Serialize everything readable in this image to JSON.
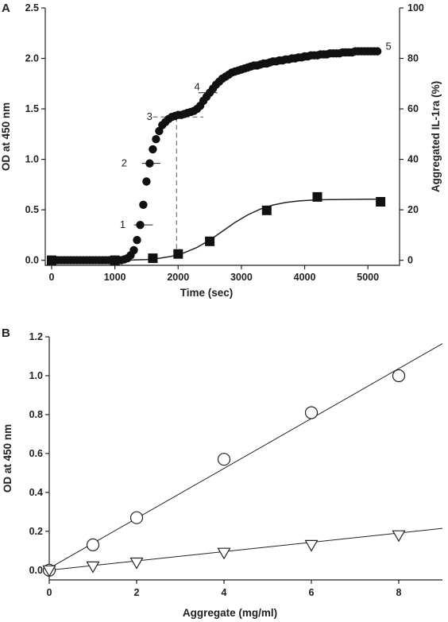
{
  "chart_data": [
    {
      "panel": "A",
      "type": "scatter",
      "xlabel": "Time (sec)",
      "ylabel": "OD at 450 nm",
      "ylabel_right": "Aggregated IL-1ra (%)",
      "xlim": [
        -100,
        5500
      ],
      "ylim": [
        -0.05,
        2.5
      ],
      "ylim_right": [
        -2,
        100
      ],
      "x_ticks": [
        0,
        1000,
        2000,
        3000,
        4000,
        5000
      ],
      "y_ticks": [
        0.0,
        0.5,
        1.0,
        1.5,
        2.0,
        2.5
      ],
      "y_tick_labels": [
        "0.0",
        "0.5",
        "1.0",
        "1.5",
        "2.0",
        "2.5"
      ],
      "y_ticks_right": [
        0,
        20,
        40,
        60,
        80,
        100
      ],
      "series": [
        {
          "marker": "circle-filled",
          "axis": "left",
          "points": [
            [
              0,
              0
            ],
            [
              50,
              0
            ],
            [
              100,
              0
            ],
            [
              150,
              0
            ],
            [
              200,
              0
            ],
            [
              250,
              0
            ],
            [
              300,
              0
            ],
            [
              350,
              0
            ],
            [
              400,
              0
            ],
            [
              450,
              0
            ],
            [
              500,
              0
            ],
            [
              550,
              0
            ],
            [
              600,
              0
            ],
            [
              650,
              0
            ],
            [
              700,
              0
            ],
            [
              750,
              0
            ],
            [
              800,
              0
            ],
            [
              850,
              0
            ],
            [
              900,
              0
            ],
            [
              950,
              0
            ],
            [
              1000,
              0
            ],
            [
              1050,
              0
            ],
            [
              1100,
              0
            ],
            [
              1150,
              0.01
            ],
            [
              1200,
              0.02
            ],
            [
              1250,
              0.05
            ],
            [
              1300,
              0.1
            ],
            [
              1350,
              0.2
            ],
            [
              1400,
              0.35
            ],
            [
              1450,
              0.55
            ],
            [
              1500,
              0.78
            ],
            [
              1550,
              0.96
            ],
            [
              1600,
              1.1
            ],
            [
              1650,
              1.2
            ],
            [
              1700,
              1.28
            ],
            [
              1750,
              1.34
            ],
            [
              1800,
              1.37
            ],
            [
              1850,
              1.4
            ],
            [
              1900,
              1.42
            ],
            [
              1950,
              1.43
            ],
            [
              2000,
              1.44
            ],
            [
              2050,
              1.44
            ],
            [
              2100,
              1.45
            ],
            [
              2150,
              1.46
            ],
            [
              2200,
              1.47
            ],
            [
              2250,
              1.48
            ],
            [
              2300,
              1.5
            ],
            [
              2350,
              1.53
            ],
            [
              2400,
              1.58
            ],
            [
              2450,
              1.62
            ],
            [
              2500,
              1.66
            ],
            [
              2550,
              1.7
            ],
            [
              2600,
              1.74
            ],
            [
              2650,
              1.77
            ],
            [
              2700,
              1.8
            ],
            [
              2750,
              1.82
            ],
            [
              2800,
              1.84
            ],
            [
              2850,
              1.86
            ],
            [
              2900,
              1.87
            ],
            [
              2950,
              1.88
            ],
            [
              3000,
              1.89
            ],
            [
              3050,
              1.9
            ],
            [
              3100,
              1.91
            ],
            [
              3150,
              1.92
            ],
            [
              3200,
              1.93
            ],
            [
              3250,
              1.93
            ],
            [
              3300,
              1.94
            ],
            [
              3350,
              1.95
            ],
            [
              3400,
              1.95
            ],
            [
              3450,
              1.96
            ],
            [
              3500,
              1.97
            ],
            [
              3550,
              1.97
            ],
            [
              3600,
              1.98
            ],
            [
              3650,
              1.98
            ],
            [
              3700,
              1.99
            ],
            [
              3750,
              1.99
            ],
            [
              3800,
              2.0
            ],
            [
              3850,
              2.0
            ],
            [
              3900,
              2.01
            ],
            [
              3950,
              2.01
            ],
            [
              4000,
              2.02
            ],
            [
              4050,
              2.02
            ],
            [
              4100,
              2.03
            ],
            [
              4150,
              2.03
            ],
            [
              4200,
              2.03
            ],
            [
              4250,
              2.04
            ],
            [
              4300,
              2.04
            ],
            [
              4350,
              2.04
            ],
            [
              4400,
              2.05
            ],
            [
              4450,
              2.05
            ],
            [
              4500,
              2.05
            ],
            [
              4550,
              2.05
            ],
            [
              4600,
              2.06
            ],
            [
              4650,
              2.06
            ],
            [
              4700,
              2.06
            ],
            [
              4750,
              2.06
            ],
            [
              4800,
              2.07
            ],
            [
              4850,
              2.07
            ],
            [
              4900,
              2.07
            ],
            [
              4950,
              2.07
            ],
            [
              5000,
              2.07
            ],
            [
              5050,
              2.07
            ],
            [
              5100,
              2.07
            ],
            [
              5150,
              2.07
            ]
          ]
        },
        {
          "marker": "square-filled",
          "axis": "right",
          "fit": "sigmoid",
          "points": [
            [
              0,
              0
            ],
            [
              1000,
              0
            ],
            [
              1600,
              0.8
            ],
            [
              2000,
              2.5
            ],
            [
              2500,
              7.5
            ],
            [
              3400,
              19.8
            ],
            [
              4200,
              25.1
            ],
            [
              5200,
              23.2
            ]
          ]
        }
      ],
      "fit_curve": [
        [
          0,
          0
        ],
        [
          1000,
          0
        ],
        [
          1300,
          0.1
        ],
        [
          1500,
          0.3
        ],
        [
          1700,
          0.8
        ],
        [
          1900,
          1.6
        ],
        [
          2100,
          3.0
        ],
        [
          2300,
          5.1
        ],
        [
          2500,
          8.0
        ],
        [
          2700,
          11.5
        ],
        [
          2900,
          15.0
        ],
        [
          3100,
          18.0
        ],
        [
          3300,
          20.3
        ],
        [
          3500,
          21.9
        ],
        [
          3700,
          22.9
        ],
        [
          3900,
          23.5
        ],
        [
          4100,
          23.8
        ],
        [
          4300,
          24.0
        ],
        [
          4600,
          24.1
        ],
        [
          5000,
          24.2
        ],
        [
          5200,
          24.2
        ]
      ],
      "annotations": [
        {
          "label": "1",
          "x": 1450,
          "y": 0.35
        },
        {
          "label": "2",
          "x": 1550,
          "y": 0.96
        },
        {
          "label": "3",
          "x": 2000,
          "y": 1.42
        },
        {
          "label": "4",
          "x": 2450,
          "y": 1.66
        },
        {
          "label": "5",
          "x": 5150,
          "y": 2.07
        }
      ]
    },
    {
      "panel": "B",
      "type": "scatter",
      "xlabel": "Aggregate (mg/ml)",
      "ylabel": "OD at 450 nm",
      "xlim": [
        0,
        9
      ],
      "ylim": [
        -0.05,
        1.2
      ],
      "x_ticks": [
        0,
        2,
        4,
        6,
        8
      ],
      "y_ticks": [
        0.0,
        0.2,
        0.4,
        0.6,
        0.8,
        1.0,
        1.2
      ],
      "y_tick_labels": [
        "0.0",
        "0.2",
        "0.4",
        "0.6",
        "0.8",
        "1.0",
        "1.2"
      ],
      "series": [
        {
          "marker": "circle-open",
          "points": [
            [
              0,
              0.0
            ],
            [
              1,
              0.13
            ],
            [
              2,
              0.27
            ],
            [
              4,
              0.57
            ],
            [
              6,
              0.81
            ],
            [
              8,
              1.0
            ]
          ],
          "fit_line": [
            [
              0,
              0.01
            ],
            [
              9,
              1.165
            ]
          ]
        },
        {
          "marker": "triangle-down-open",
          "points": [
            [
              0,
              0.0
            ],
            [
              1,
              0.02
            ],
            [
              2,
              0.04
            ],
            [
              4,
              0.09
            ],
            [
              6,
              0.13
            ],
            [
              8,
              0.18
            ]
          ],
          "fit_line": [
            [
              0,
              0.0
            ],
            [
              9,
              0.215
            ]
          ]
        }
      ]
    }
  ]
}
